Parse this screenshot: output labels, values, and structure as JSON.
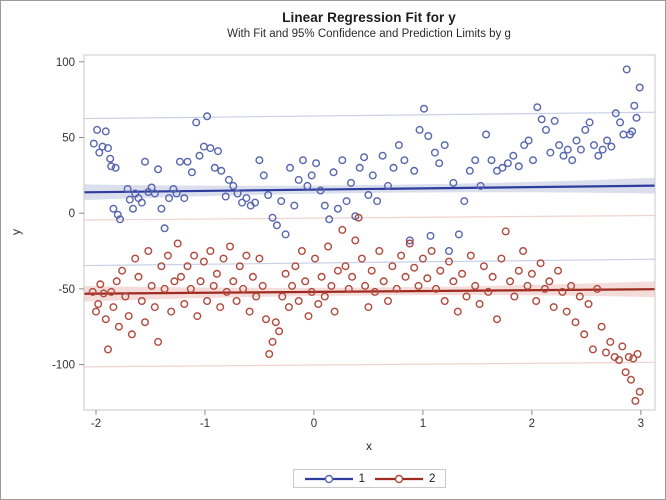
{
  "chart_data": {
    "type": "scatter",
    "title": "Linear Regression Fit for y",
    "subtitle": "With Fit and 95% Confidence and Prediction Limits by g",
    "xlabel": "x",
    "ylabel": "y",
    "xlim": [
      -2.11,
      3.13
    ],
    "ylim": [
      -130,
      104.5
    ],
    "xticks": [
      -2,
      -1,
      0,
      1,
      2,
      3
    ],
    "yticks": [
      100,
      50,
      0,
      -50,
      -100
    ],
    "grid": false,
    "legend_position": "bottom-center",
    "frame_color": "#c9c9c9",
    "tick_color": "#8b8b8b",
    "tick_label_color": "#333333",
    "series": [
      {
        "name": "1",
        "group": "g=1",
        "marker_color": "#5766AE",
        "line_color": "#2E3C9E",
        "band_color": "#DADEED",
        "pl_color": "#C9D0E8",
        "fit_line": {
          "x": [
            -2.11,
            3.13
          ],
          "y": [
            13.8,
            18.2
          ]
        },
        "confidence_band_halfwidth": {
          "mid": 2.6,
          "end": 5.2
        },
        "prediction_limits": {
          "upper_y": [
            62.5,
            66.7
          ],
          "lower_y": [
            -34.6,
            -30.4
          ]
        },
        "points": [
          [
            -2.02,
            46
          ],
          [
            -1.99,
            55
          ],
          [
            -1.97,
            40
          ],
          [
            -1.94,
            44
          ],
          [
            -1.91,
            54
          ],
          [
            -1.89,
            43
          ],
          [
            -1.87,
            36
          ],
          [
            -1.86,
            31
          ],
          [
            -1.84,
            3
          ],
          [
            -1.82,
            30
          ],
          [
            -1.8,
            -1
          ],
          [
            -1.78,
            -4
          ],
          [
            -1.71,
            16
          ],
          [
            -1.69,
            9
          ],
          [
            -1.66,
            3
          ],
          [
            -1.64,
            13
          ],
          [
            -1.61,
            10
          ],
          [
            -1.58,
            7
          ],
          [
            -1.55,
            34
          ],
          [
            -1.52,
            14
          ],
          [
            -1.49,
            17
          ],
          [
            -1.46,
            13
          ],
          [
            -1.43,
            29
          ],
          [
            -1.4,
            3
          ],
          [
            -1.37,
            -10
          ],
          [
            -1.33,
            10
          ],
          [
            -1.29,
            16
          ],
          [
            -1.26,
            13
          ],
          [
            -1.23,
            34
          ],
          [
            -1.19,
            10
          ],
          [
            -1.16,
            34
          ],
          [
            -1.12,
            27
          ],
          [
            -1.08,
            60
          ],
          [
            -1.05,
            38
          ],
          [
            -1.01,
            44
          ],
          [
            -0.98,
            64
          ],
          [
            -0.95,
            43
          ],
          [
            -0.91,
            30
          ],
          [
            -0.88,
            41
          ],
          [
            -0.85,
            28
          ],
          [
            -0.81,
            11
          ],
          [
            -0.78,
            22
          ],
          [
            -0.74,
            18
          ],
          [
            -0.7,
            13
          ],
          [
            -0.66,
            7
          ],
          [
            -0.62,
            10
          ],
          [
            -0.58,
            5
          ],
          [
            -0.54,
            7
          ],
          [
            -0.5,
            35
          ],
          [
            -0.46,
            25
          ],
          [
            -0.42,
            12
          ],
          [
            -0.38,
            -3
          ],
          [
            -0.34,
            -8
          ],
          [
            -0.3,
            8
          ],
          [
            -0.26,
            -14
          ],
          [
            -0.22,
            30
          ],
          [
            -0.18,
            5
          ],
          [
            -0.14,
            22
          ],
          [
            -0.1,
            35
          ],
          [
            -0.06,
            18
          ],
          [
            -0.02,
            25
          ],
          [
            0.02,
            33
          ],
          [
            0.06,
            15
          ],
          [
            0.1,
            5
          ],
          [
            0.14,
            -4
          ],
          [
            0.18,
            27
          ],
          [
            0.22,
            3
          ],
          [
            0.26,
            35
          ],
          [
            0.3,
            8
          ],
          [
            0.34,
            20
          ],
          [
            0.38,
            -2
          ],
          [
            0.42,
            30
          ],
          [
            0.46,
            37
          ],
          [
            0.5,
            12
          ],
          [
            0.54,
            25
          ],
          [
            0.58,
            8
          ],
          [
            0.63,
            38
          ],
          [
            0.68,
            18
          ],
          [
            0.73,
            30
          ],
          [
            0.78,
            45
          ],
          [
            0.83,
            35
          ],
          [
            0.88,
            -18
          ],
          [
            0.92,
            28
          ],
          [
            0.97,
            55
          ],
          [
            1.01,
            69
          ],
          [
            1.05,
            51
          ],
          [
            1.07,
            -15
          ],
          [
            1.11,
            40
          ],
          [
            1.15,
            33
          ],
          [
            1.2,
            45
          ],
          [
            1.24,
            -25
          ],
          [
            1.28,
            20
          ],
          [
            1.33,
            -14
          ],
          [
            1.38,
            8
          ],
          [
            1.43,
            28
          ],
          [
            1.48,
            35
          ],
          [
            1.53,
            18
          ],
          [
            1.58,
            52
          ],
          [
            1.63,
            35
          ],
          [
            1.68,
            28
          ],
          [
            1.73,
            30
          ],
          [
            1.78,
            33
          ],
          [
            1.83,
            38
          ],
          [
            1.88,
            31
          ],
          [
            1.93,
            45
          ],
          [
            1.97,
            48
          ],
          [
            2.01,
            35
          ],
          [
            2.05,
            70
          ],
          [
            2.09,
            62
          ],
          [
            2.13,
            55
          ],
          [
            2.17,
            40
          ],
          [
            2.21,
            61
          ],
          [
            2.25,
            45
          ],
          [
            2.29,
            38
          ],
          [
            2.33,
            42
          ],
          [
            2.37,
            35
          ],
          [
            2.41,
            48
          ],
          [
            2.45,
            42
          ],
          [
            2.49,
            55
          ],
          [
            2.53,
            60
          ],
          [
            2.57,
            45
          ],
          [
            2.61,
            38
          ],
          [
            2.65,
            42
          ],
          [
            2.69,
            48
          ],
          [
            2.73,
            44
          ],
          [
            2.77,
            66
          ],
          [
            2.81,
            60
          ],
          [
            2.84,
            52
          ],
          [
            2.87,
            95
          ],
          [
            2.9,
            52
          ],
          [
            2.92,
            54
          ],
          [
            2.94,
            71
          ],
          [
            2.96,
            63
          ],
          [
            2.99,
            83
          ]
        ]
      },
      {
        "name": "2",
        "group": "g=2",
        "marker_color": "#B0493C",
        "line_color": "#9E2A20",
        "band_color": "#F3DCDA",
        "pl_color": "#EFD3D0",
        "fit_line": {
          "x": [
            -2.11,
            3.13
          ],
          "y": [
            -53.2,
            -50.2
          ]
        },
        "confidence_band_halfwidth": {
          "mid": 2.6,
          "end": 5.2
        },
        "prediction_limits": {
          "upper_y": [
            -4.5,
            -1.5
          ],
          "lower_y": [
            -101.5,
            -98.5
          ]
        },
        "points": [
          [
            -2.03,
            -52
          ],
          [
            -2.0,
            -65
          ],
          [
            -1.98,
            -60
          ],
          [
            -1.96,
            -47
          ],
          [
            -1.93,
            -53
          ],
          [
            -1.91,
            -70
          ],
          [
            -1.89,
            -90
          ],
          [
            -1.86,
            -52
          ],
          [
            -1.84,
            -62
          ],
          [
            -1.81,
            -45
          ],
          [
            -1.79,
            -75
          ],
          [
            -1.76,
            -38
          ],
          [
            -1.73,
            -55
          ],
          [
            -1.7,
            -68
          ],
          [
            -1.67,
            -80
          ],
          [
            -1.64,
            -30
          ],
          [
            -1.61,
            -42
          ],
          [
            -1.58,
            -58
          ],
          [
            -1.55,
            -72
          ],
          [
            -1.52,
            -25
          ],
          [
            -1.49,
            -48
          ],
          [
            -1.46,
            -62
          ],
          [
            -1.43,
            -85
          ],
          [
            -1.4,
            -35
          ],
          [
            -1.37,
            -50
          ],
          [
            -1.34,
            -28
          ],
          [
            -1.31,
            -65
          ],
          [
            -1.28,
            -45
          ],
          [
            -1.25,
            -20
          ],
          [
            -1.22,
            -42
          ],
          [
            -1.19,
            -60
          ],
          [
            -1.16,
            -35
          ],
          [
            -1.13,
            -50
          ],
          [
            -1.1,
            -28
          ],
          [
            -1.07,
            -68
          ],
          [
            -1.04,
            -45
          ],
          [
            -1.01,
            -32
          ],
          [
            -0.98,
            -58
          ],
          [
            -0.95,
            -25
          ],
          [
            -0.92,
            -48
          ],
          [
            -0.89,
            -40
          ],
          [
            -0.86,
            -62
          ],
          [
            -0.83,
            -30
          ],
          [
            -0.8,
            -52
          ],
          [
            -0.77,
            -22
          ],
          [
            -0.74,
            -45
          ],
          [
            -0.71,
            -58
          ],
          [
            -0.68,
            -35
          ],
          [
            -0.65,
            -50
          ],
          [
            -0.62,
            -28
          ],
          [
            -0.59,
            -65
          ],
          [
            -0.56,
            -42
          ],
          [
            -0.53,
            -55
          ],
          [
            -0.5,
            -30
          ],
          [
            -0.47,
            -48
          ],
          [
            -0.44,
            -70
          ],
          [
            -0.41,
            -93
          ],
          [
            -0.38,
            -85
          ],
          [
            -0.35,
            -72
          ],
          [
            -0.32,
            -78
          ],
          [
            -0.29,
            -55
          ],
          [
            -0.26,
            -40
          ],
          [
            -0.23,
            -62
          ],
          [
            -0.2,
            -48
          ],
          [
            -0.17,
            -35
          ],
          [
            -0.14,
            -58
          ],
          [
            -0.11,
            -25
          ],
          [
            -0.08,
            -45
          ],
          [
            -0.05,
            -68
          ],
          [
            -0.02,
            -52
          ],
          [
            0.01,
            -30
          ],
          [
            0.04,
            -60
          ],
          [
            0.07,
            -42
          ],
          [
            0.1,
            -55
          ],
          [
            0.13,
            -22
          ],
          [
            0.16,
            -48
          ],
          [
            0.19,
            -65
          ],
          [
            0.22,
            -38
          ],
          [
            0.26,
            -11
          ],
          [
            0.29,
            -35
          ],
          [
            0.32,
            -50
          ],
          [
            0.35,
            -42
          ],
          [
            0.38,
            -18
          ],
          [
            0.41,
            -3
          ],
          [
            0.44,
            -30
          ],
          [
            0.47,
            -48
          ],
          [
            0.5,
            -62
          ],
          [
            0.53,
            -38
          ],
          [
            0.56,
            -52
          ],
          [
            0.6,
            -25
          ],
          [
            0.64,
            -45
          ],
          [
            0.68,
            -58
          ],
          [
            0.72,
            -35
          ],
          [
            0.76,
            -50
          ],
          [
            0.8,
            -28
          ],
          [
            0.84,
            -42
          ],
          [
            0.88,
            -20
          ],
          [
            0.92,
            -36
          ],
          [
            0.96,
            -48
          ],
          [
            1.0,
            -30
          ],
          [
            1.04,
            -43
          ],
          [
            1.08,
            -25
          ],
          [
            1.12,
            -50
          ],
          [
            1.16,
            -38
          ],
          [
            1.2,
            -58
          ],
          [
            1.24,
            -32
          ],
          [
            1.28,
            -45
          ],
          [
            1.32,
            -65
          ],
          [
            1.36,
            -40
          ],
          [
            1.4,
            -55
          ],
          [
            1.44,
            -28
          ],
          [
            1.48,
            -48
          ],
          [
            1.52,
            -60
          ],
          [
            1.56,
            -35
          ],
          [
            1.6,
            -52
          ],
          [
            1.64,
            -42
          ],
          [
            1.68,
            -70
          ],
          [
            1.72,
            -30
          ],
          [
            1.76,
            -12
          ],
          [
            1.8,
            -45
          ],
          [
            1.84,
            -55
          ],
          [
            1.88,
            -38
          ],
          [
            1.92,
            -25
          ],
          [
            1.96,
            -48
          ],
          [
            2.0,
            -40
          ],
          [
            2.04,
            -58
          ],
          [
            2.08,
            -33
          ],
          [
            2.12,
            -50
          ],
          [
            2.16,
            -45
          ],
          [
            2.2,
            -62
          ],
          [
            2.24,
            -38
          ],
          [
            2.28,
            -52
          ],
          [
            2.32,
            -65
          ],
          [
            2.36,
            -48
          ],
          [
            2.4,
            -72
          ],
          [
            2.44,
            -55
          ],
          [
            2.48,
            -80
          ],
          [
            2.52,
            -60
          ],
          [
            2.56,
            -90
          ],
          [
            2.6,
            -50
          ],
          [
            2.64,
            -75
          ],
          [
            2.68,
            -92
          ],
          [
            2.72,
            -85
          ],
          [
            2.76,
            -95
          ],
          [
            2.8,
            -97
          ],
          [
            2.83,
            -88
          ],
          [
            2.86,
            -105
          ],
          [
            2.89,
            -95
          ],
          [
            2.91,
            -110
          ],
          [
            2.93,
            -96
          ],
          [
            2.95,
            -124
          ],
          [
            2.97,
            -93
          ],
          [
            2.99,
            -118
          ]
        ]
      }
    ]
  },
  "legend": {
    "items": [
      {
        "label": "1"
      },
      {
        "label": "2"
      }
    ]
  }
}
